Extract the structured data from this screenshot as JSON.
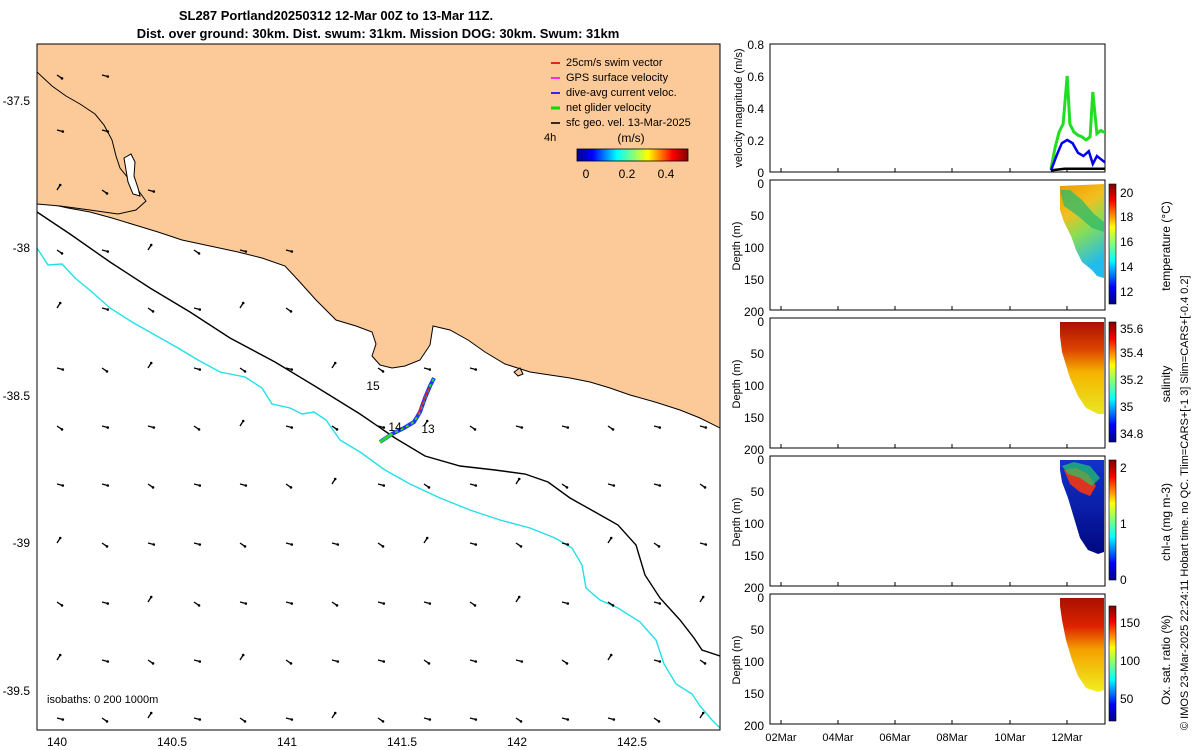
{
  "figure": {
    "title_line1": "SL287 Portland20250312 12-Mar 00Z to 13-Mar 11Z.",
    "title_line2": "Dist. over ground: 30km. Dist. swum: 31km. Mission DOG: 30km. Swum: 31km",
    "side_note": "© IMOS 23-Mar-2025 22:24:11 Hobart time. no QC. Tlim=CARS+[-1 3] Slim=CARS+[-0.4 0.2]"
  },
  "map": {
    "legend": [
      {
        "label": "25cm/s swim vector",
        "color": "#d40000"
      },
      {
        "label": "GPS surface velocity",
        "color": "#ff00ff"
      },
      {
        "label": "dive-avg current veloc.",
        "color": "#0000ff"
      },
      {
        "label": "net glider velocity",
        "color": "#00e000"
      },
      {
        "label": "sfc geo. vel. 13-Mar-2025",
        "color": "#000000"
      }
    ],
    "colorbar": {
      "scale_note": "4h",
      "unit": "(m/s)",
      "ticks": [
        "0",
        "0.2",
        "0.4"
      ]
    },
    "isobaths_label": "isobaths: 0   200  1000m",
    "day_labels": [
      "15",
      "14",
      "13"
    ],
    "land_color": "#fcc998",
    "coast_200m_color": "#000000",
    "coast_1000m_color": "#22e0e8",
    "x_ticks": [
      "140",
      "140.5",
      "141",
      "141.5",
      "142",
      "142.5"
    ],
    "y_ticks": [
      "-37.5",
      "-38",
      "-38.5",
      "-39",
      "-39.5"
    ]
  },
  "panels": {
    "velocity": {
      "ylabel": "velocity magnitude (m/s)",
      "y_ticks": [
        "0",
        "0.2",
        "0.4",
        "0.6",
        "0.8"
      ]
    },
    "temperature": {
      "ylabel": "Depth (m)",
      "cbar_label": "temperature (°C)",
      "y_ticks": [
        "0",
        "50",
        "100",
        "150",
        "200"
      ],
      "cbar_ticks": [
        "20",
        "18",
        "16",
        "14",
        "12"
      ]
    },
    "salinity": {
      "ylabel": "Depth (m)",
      "cbar_label": "salinity",
      "y_ticks": [
        "0",
        "50",
        "100",
        "150",
        "200"
      ],
      "cbar_ticks": [
        "35.6",
        "35.4",
        "35.2",
        "35",
        "34.8"
      ]
    },
    "chla": {
      "ylabel": "Depth (m)",
      "cbar_label": "chl-a (mg m-3)",
      "y_ticks": [
        "0",
        "50",
        "100",
        "150",
        "200"
      ],
      "cbar_ticks": [
        "2",
        "1",
        "0"
      ]
    },
    "oxygen": {
      "ylabel": "Depth (m)",
      "cbar_label": "Ox. sat. ratio (%)",
      "y_ticks": [
        "0",
        "50",
        "100",
        "150",
        "200"
      ],
      "cbar_ticks": [
        "150",
        "100",
        "50"
      ]
    },
    "x_ticks": [
      "02Mar",
      "04Mar",
      "06Mar",
      "08Mar",
      "10Mar",
      "12Mar"
    ]
  },
  "chart_data": [
    {
      "type": "line",
      "title": "velocity magnitude",
      "ylabel": "velocity magnitude (m/s)",
      "ylim": [
        0,
        0.8
      ],
      "series": [
        {
          "color": "#22dd22",
          "x_days": [
            12.0,
            12.15,
            12.3,
            12.45,
            12.6,
            12.7,
            12.85,
            13.0,
            13.15,
            13.3,
            13.45,
            13.55,
            13.7,
            13.85,
            13.95,
            14.0
          ],
          "values": [
            0.02,
            0.15,
            0.25,
            0.3,
            0.6,
            0.3,
            0.25,
            0.23,
            0.22,
            0.2,
            0.22,
            0.5,
            0.24,
            0.26,
            0.25,
            0.25
          ]
        },
        {
          "color": "#0000ee",
          "x_days": [
            12.0,
            12.2,
            12.4,
            12.6,
            12.8,
            13.0,
            13.2,
            13.4,
            13.55,
            13.7,
            13.85,
            14.0
          ],
          "values": [
            0.01,
            0.1,
            0.18,
            0.2,
            0.18,
            0.12,
            0.1,
            0.13,
            0.05,
            0.1,
            0.08,
            0.06
          ]
        },
        {
          "color": "#000000",
          "x_days": [
            12.0,
            12.5,
            13.0,
            13.5,
            14.0
          ],
          "values": [
            0.01,
            0.02,
            0.02,
            0.02,
            0.02
          ]
        }
      ]
    }
  ]
}
